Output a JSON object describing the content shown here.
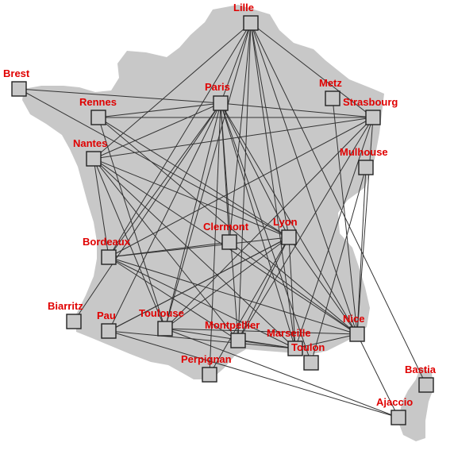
{
  "map": {
    "label_color": "#e00000",
    "land_color": "#c8c8c8",
    "node_fill": "#c8c8c8",
    "edge_color": "#333333",
    "cities": [
      {
        "id": "lille",
        "name": "Lille"
      },
      {
        "id": "brest",
        "name": "Brest"
      },
      {
        "id": "paris",
        "name": "Paris"
      },
      {
        "id": "metz",
        "name": "Metz"
      },
      {
        "id": "rennes",
        "name": "Rennes"
      },
      {
        "id": "strasbourg",
        "name": "Strasbourg"
      },
      {
        "id": "nantes",
        "name": "Nantes"
      },
      {
        "id": "mulhouse",
        "name": "Mulhouse"
      },
      {
        "id": "clermont",
        "name": "Clermont"
      },
      {
        "id": "lyon",
        "name": "Lyon"
      },
      {
        "id": "bordeaux",
        "name": "Bordeaux"
      },
      {
        "id": "biarritz",
        "name": "Biarritz"
      },
      {
        "id": "pau",
        "name": "Pau"
      },
      {
        "id": "toulouse",
        "name": "Toulouse"
      },
      {
        "id": "montpellier",
        "name": "Montpellier"
      },
      {
        "id": "marseille",
        "name": "Marseille"
      },
      {
        "id": "nice",
        "name": "Nice"
      },
      {
        "id": "toulon",
        "name": "Toulon"
      },
      {
        "id": "perpignan",
        "name": "Perpignan"
      },
      {
        "id": "bastia",
        "name": "Bastia"
      },
      {
        "id": "ajaccio",
        "name": "Ajaccio"
      }
    ],
    "routes": [
      [
        "lille",
        "paris"
      ],
      [
        "lille",
        "strasbourg"
      ],
      [
        "lille",
        "nantes"
      ],
      [
        "lille",
        "bordeaux"
      ],
      [
        "lille",
        "clermont"
      ],
      [
        "lille",
        "lyon"
      ],
      [
        "lille",
        "toulouse"
      ],
      [
        "lille",
        "montpellier"
      ],
      [
        "lille",
        "marseille"
      ],
      [
        "lille",
        "nice"
      ],
      [
        "lille",
        "bastia"
      ],
      [
        "brest",
        "paris"
      ],
      [
        "brest",
        "lyon"
      ],
      [
        "rennes",
        "paris"
      ],
      [
        "rennes",
        "strasbourg"
      ],
      [
        "rennes",
        "lyon"
      ],
      [
        "rennes",
        "toulouse"
      ],
      [
        "rennes",
        "nice"
      ],
      [
        "nantes",
        "paris"
      ],
      [
        "nantes",
        "strasbourg"
      ],
      [
        "nantes",
        "lyon"
      ],
      [
        "nantes",
        "bordeaux"
      ],
      [
        "nantes",
        "toulouse"
      ],
      [
        "nantes",
        "montpellier"
      ],
      [
        "nantes",
        "marseille"
      ],
      [
        "nantes",
        "nice"
      ],
      [
        "paris",
        "strasbourg"
      ],
      [
        "paris",
        "bordeaux"
      ],
      [
        "paris",
        "clermont"
      ],
      [
        "paris",
        "lyon"
      ],
      [
        "paris",
        "toulouse"
      ],
      [
        "paris",
        "montpellier"
      ],
      [
        "paris",
        "marseille"
      ],
      [
        "paris",
        "toulon"
      ],
      [
        "paris",
        "nice"
      ],
      [
        "paris",
        "perpignan"
      ],
      [
        "paris",
        "pau"
      ],
      [
        "paris",
        "biarritz"
      ],
      [
        "metz",
        "nice"
      ],
      [
        "strasbourg",
        "bordeaux"
      ],
      [
        "strasbourg",
        "toulouse"
      ],
      [
        "strasbourg",
        "marseille"
      ],
      [
        "strasbourg",
        "montpellier"
      ],
      [
        "strasbourg",
        "nice"
      ],
      [
        "mulhouse",
        "toulon"
      ],
      [
        "mulhouse",
        "nice"
      ],
      [
        "lyon",
        "bordeaux"
      ],
      [
        "lyon",
        "toulouse"
      ],
      [
        "lyon",
        "montpellier"
      ],
      [
        "lyon",
        "perpignan"
      ],
      [
        "lyon",
        "marseille"
      ],
      [
        "lyon",
        "nice"
      ],
      [
        "lyon",
        "pau"
      ],
      [
        "clermont",
        "bordeaux"
      ],
      [
        "clermont",
        "nice"
      ],
      [
        "bordeaux",
        "montpellier"
      ],
      [
        "bordeaux",
        "marseille"
      ],
      [
        "bordeaux",
        "nice"
      ],
      [
        "pau",
        "lyon"
      ],
      [
        "pau",
        "marseille"
      ],
      [
        "pau",
        "ajaccio"
      ],
      [
        "toulouse",
        "marseille"
      ],
      [
        "toulouse",
        "nice"
      ],
      [
        "toulouse",
        "ajaccio"
      ],
      [
        "montpellier",
        "marseille"
      ],
      [
        "marseille",
        "nice"
      ],
      [
        "nice",
        "ajaccio"
      ]
    ]
  }
}
